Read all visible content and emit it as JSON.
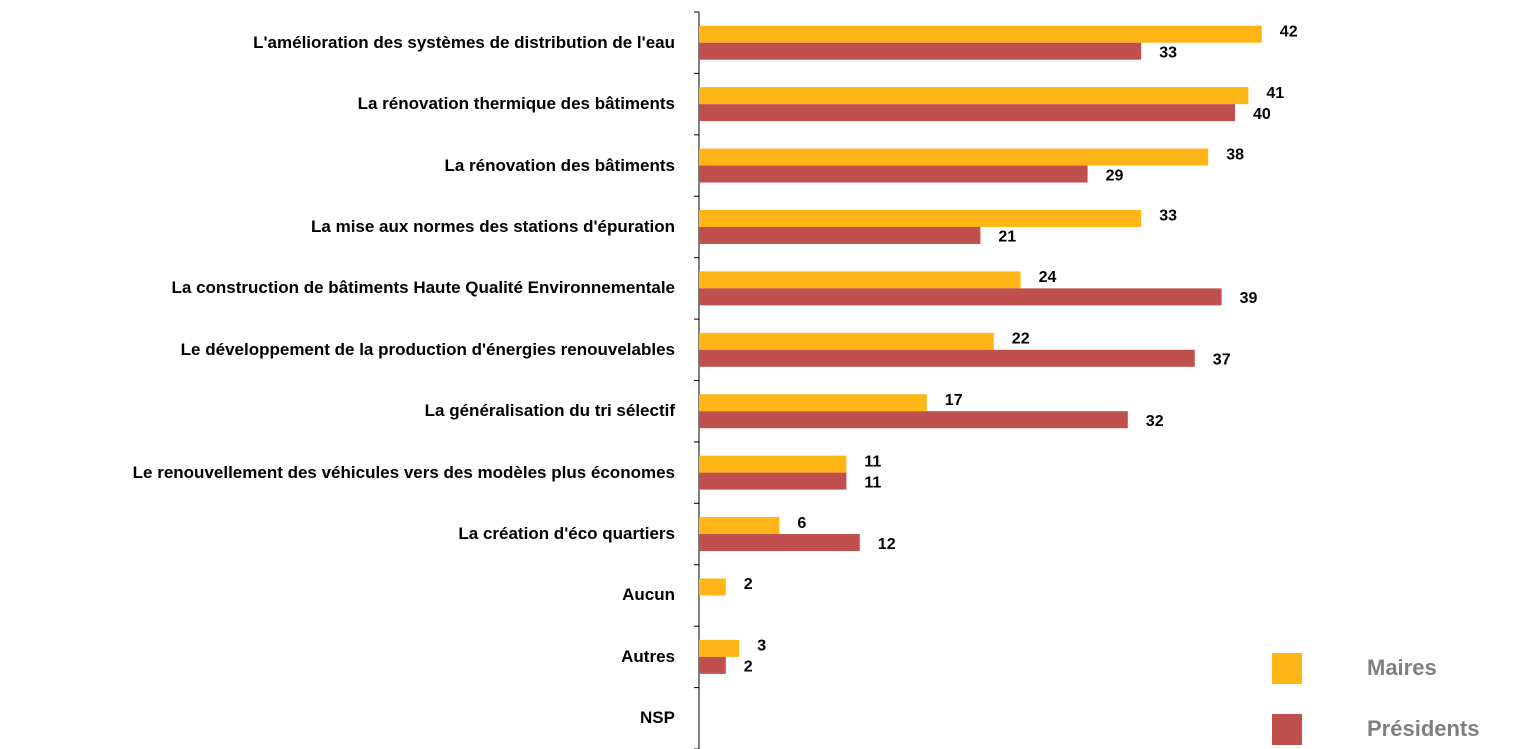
{
  "chart_data": {
    "type": "bar",
    "orientation": "horizontal",
    "categories": [
      "L'amélioration des systèmes de distribution de l'eau",
      "La rénovation thermique des bâtiments",
      "La rénovation des bâtiments",
      "La mise aux normes des stations d'épuration",
      "La construction de bâtiments Haute Qualité Environnementale",
      "Le développement de la production d'énergies renouvelables",
      "La généralisation du tri sélectif",
      "Le renouvellement des véhicules vers des modèles plus économes",
      "La création d'éco quartiers",
      "Aucun",
      "Autres",
      "NSP"
    ],
    "series": [
      {
        "name": "Maires",
        "color": "#FFB515",
        "values": [
          42,
          41,
          38,
          33,
          24,
          22,
          17,
          11,
          6,
          2,
          3,
          null
        ]
      },
      {
        "name": "Présidents",
        "color": "#C0504D",
        "values": [
          33,
          40,
          29,
          21,
          39,
          37,
          32,
          11,
          12,
          null,
          2,
          null
        ]
      }
    ],
    "xlim": [
      0,
      62
    ],
    "legend": "bottom-right"
  }
}
